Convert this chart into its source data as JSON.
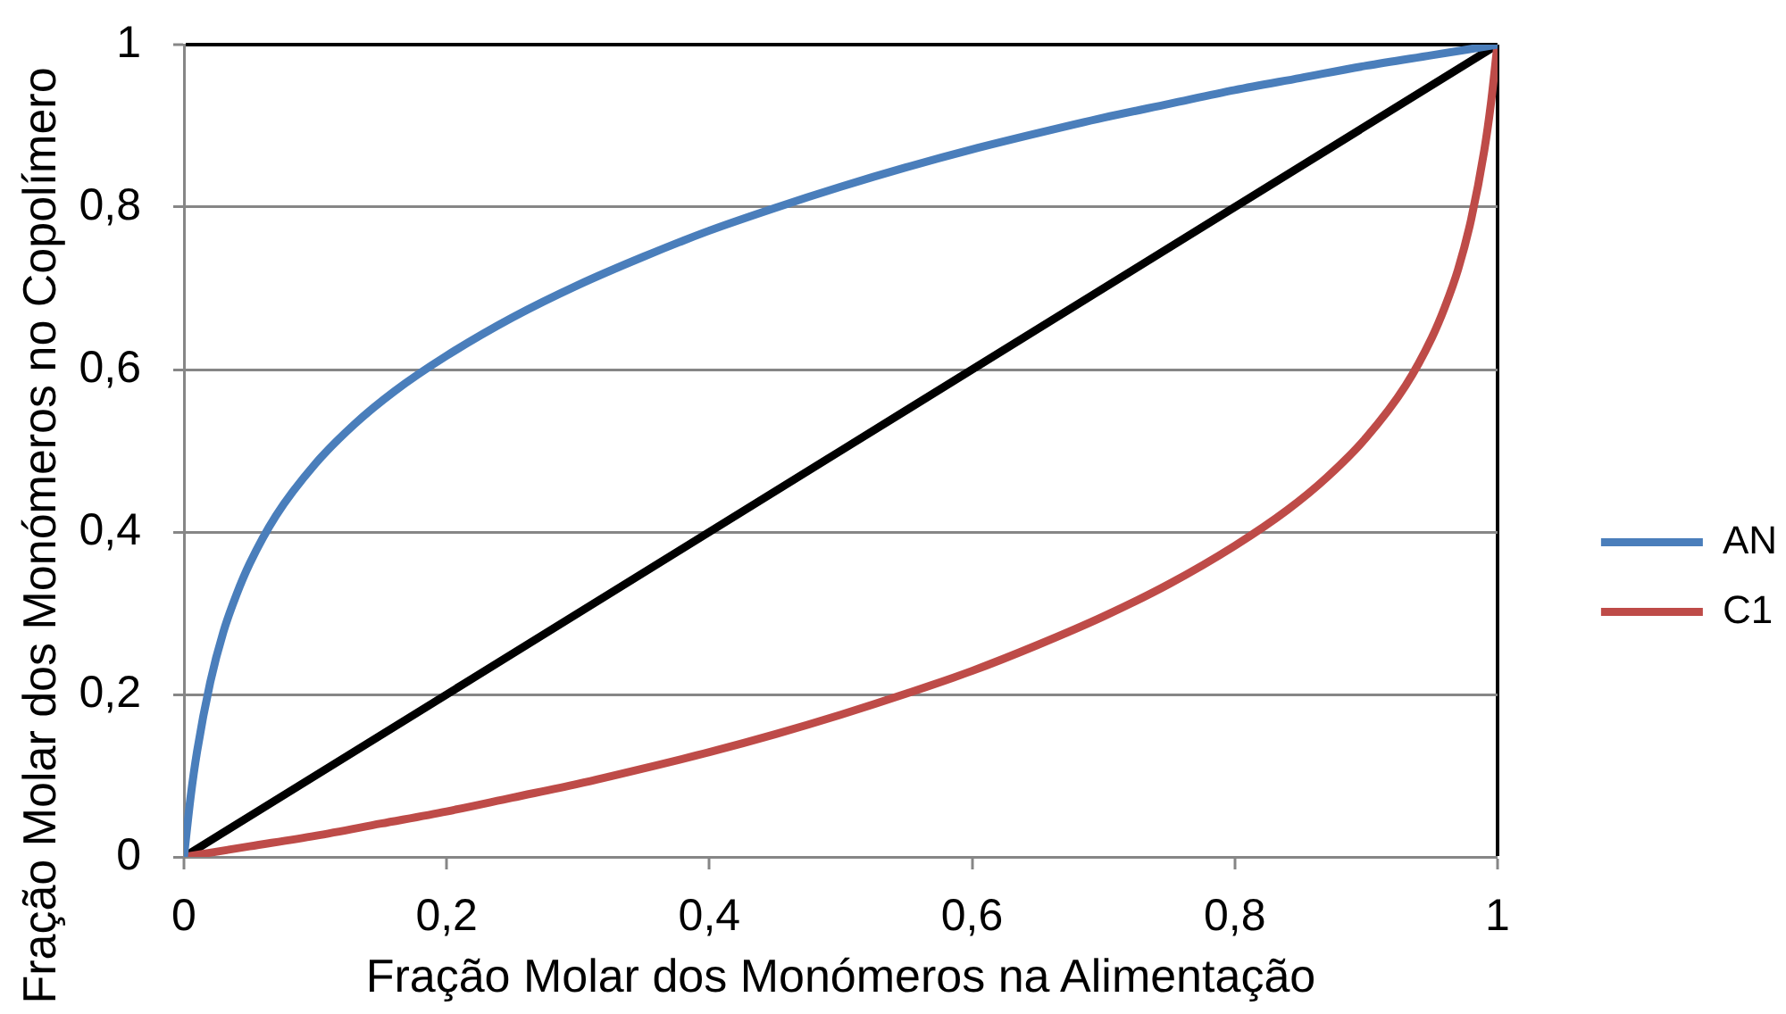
{
  "chart_data": {
    "type": "line",
    "xlabel": "Fração Molar dos Monómeros na Alimentação",
    "ylabel": "Fração Molar dos Monómeros no Copolímero",
    "xlim": [
      0,
      1
    ],
    "ylim": [
      0,
      1
    ],
    "xticks": [
      0,
      {
        "value": 0.2,
        "label": "0,2"
      },
      {
        "value": 0.4,
        "label": "0,4"
      },
      {
        "value": 0.6,
        "label": "0,6"
      },
      {
        "value": 0.8,
        "label": "0,8"
      },
      1
    ],
    "yticks": [
      0,
      {
        "value": 0.2,
        "label": "0,2"
      },
      {
        "value": 0.4,
        "label": "0,4"
      },
      {
        "value": 0.6,
        "label": "0,6"
      },
      {
        "value": 0.8,
        "label": "0,8"
      },
      1
    ],
    "grid": "y",
    "legend": "right",
    "marker": "none",
    "series": [
      {
        "name": "AN",
        "color": "#4a7ebb",
        "x": [
          0,
          0.005,
          0.01,
          0.02,
          0.03,
          0.04,
          0.05,
          0.07,
          0.1,
          0.13,
          0.16,
          0.2,
          0.25,
          0.3,
          0.35,
          0.4,
          0.45,
          0.5,
          0.55,
          0.6,
          0.65,
          0.7,
          0.75,
          0.8,
          0.85,
          0.9,
          0.95,
          1
        ],
        "values": [
          0,
          0.073,
          0.13,
          0.215,
          0.277,
          0.323,
          0.361,
          0.42,
          0.484,
          0.533,
          0.573,
          0.617,
          0.664,
          0.704,
          0.739,
          0.771,
          0.799,
          0.825,
          0.849,
          0.871,
          0.891,
          0.91,
          0.927,
          0.944,
          0.959,
          0.974,
          0.987,
          1
        ]
      },
      {
        "name": "C1",
        "color": "#be4b48",
        "x": [
          0,
          0.05,
          0.1,
          0.15,
          0.2,
          0.25,
          0.3,
          0.35,
          0.4,
          0.45,
          0.5,
          0.55,
          0.6,
          0.65,
          0.7,
          0.75,
          0.8,
          0.84,
          0.87,
          0.9,
          0.93,
          0.95,
          0.96,
          0.97,
          0.98,
          0.99,
          0.995,
          1
        ],
        "values": [
          0,
          0.013,
          0.026,
          0.041,
          0.056,
          0.073,
          0.09,
          0.109,
          0.129,
          0.151,
          0.175,
          0.201,
          0.229,
          0.261,
          0.296,
          0.336,
          0.383,
          0.427,
          0.467,
          0.516,
          0.58,
          0.639,
          0.677,
          0.723,
          0.785,
          0.87,
          0.927,
          1
        ]
      },
      {
        "color": "#000000",
        "x": [
          0,
          1
        ],
        "values": [
          0,
          1
        ]
      }
    ]
  }
}
